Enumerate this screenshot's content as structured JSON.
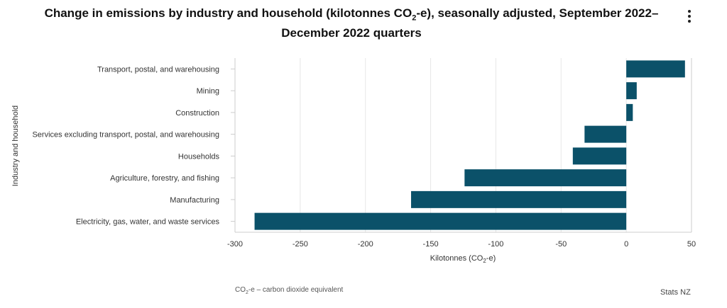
{
  "header": {
    "title_part1": "Change in emissions by industry and household (kilotonnes CO",
    "title_sub": "2",
    "title_part2": "-e), seasonally adjusted, September 2022–December 2022 quarters",
    "menu_icon": "more-vertical-icon"
  },
  "footer": {
    "note_part1": "CO",
    "note_sub": "2",
    "note_part2": "-e – carbon dioxide equivalent",
    "credit": "Stats NZ"
  },
  "colors": {
    "bar": "#0b5169",
    "grid": "#e6e6e6",
    "axis": "#cccccc"
  },
  "chart_data": {
    "type": "bar",
    "orientation": "horizontal",
    "title": "Change in emissions by industry and household (kilotonnes CO2-e), seasonally adjusted, September 2022–December 2022 quarters",
    "xlabel_part1": "Kilotonnes (CO",
    "xlabel_sub": "2",
    "xlabel_part2": "-e)",
    "ylabel": "Industry and household",
    "xlim": [
      -300,
      50
    ],
    "xticks": [
      -300,
      -250,
      -200,
      -150,
      -100,
      -50,
      0,
      50
    ],
    "grid": true,
    "categories": [
      "Transport, postal, and warehousing",
      "Mining",
      "Construction",
      "Services excluding transport, postal, and warehousing",
      "Households",
      "Agriculture, forestry, and fishing",
      "Manufacturing",
      "Electricity, gas, water, and waste services"
    ],
    "values": [
      45,
      8,
      5,
      -32,
      -41,
      -124,
      -165,
      -285
    ]
  }
}
